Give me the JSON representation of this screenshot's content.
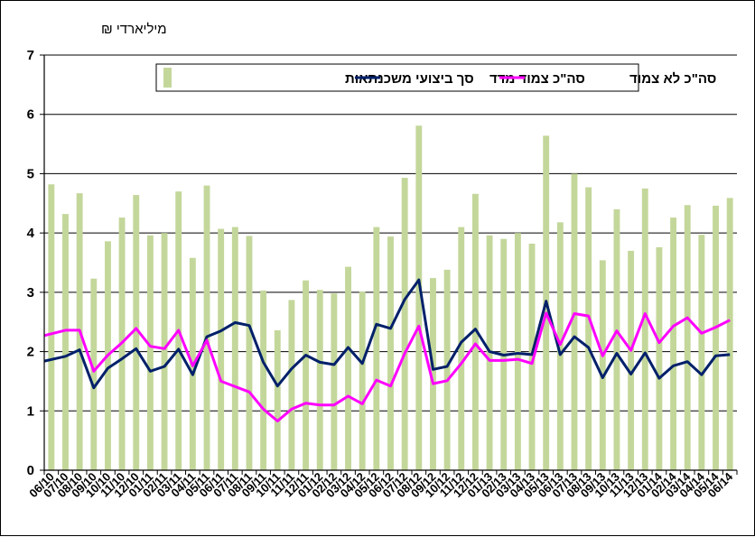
{
  "chart_data": {
    "type": "bar",
    "unit_label": "מיליארדי ₪",
    "ylim": [
      0,
      7
    ],
    "yticks": [
      "0",
      "1",
      "2",
      "3",
      "4",
      "5",
      "6",
      "7"
    ],
    "grid": true,
    "legend_position": "top",
    "categories": [
      "06/10",
      "07/10",
      "08/10",
      "09/10",
      "10/10",
      "11/10",
      "12/10",
      "01/11",
      "02/11",
      "03/11",
      "04/11",
      "05/11",
      "06/11",
      "07/11",
      "08/11",
      "09/11",
      "10/11",
      "11/11",
      "12/11",
      "01/12",
      "02/12",
      "03/12",
      "04/12",
      "05/12",
      "06/12",
      "07/12",
      "08/12",
      "09/12",
      "10/12",
      "11/12",
      "12/12",
      "01/13",
      "02/13",
      "03/13",
      "04/13",
      "05/13",
      "06/13",
      "07/13",
      "08/13",
      "09/13",
      "10/13",
      "11/13",
      "12/13",
      "01/14",
      "02/14",
      "03/14",
      "04/14",
      "05/14",
      "06/14"
    ],
    "x_tick_labels": [
      "06/10",
      "07/10",
      "08/10",
      "09/10",
      "10/10",
      "11/10",
      "12/10",
      "01/11",
      "02/11",
      "03/11",
      "04/11",
      "05/11",
      "06/11",
      "07/11",
      "08/11",
      "09/11",
      "10/11",
      "11/11",
      "12/11",
      "01/12",
      "02/12",
      "03/12",
      "04/12",
      "05/12",
      "06/12",
      "07/12",
      "08/12",
      "09/12",
      "10/12",
      "11/12",
      "12/12",
      "01/13",
      "02/13",
      "03/13",
      "04/13",
      "05/13",
      "06/13",
      "07/13",
      "08/13",
      "09/13",
      "10/13",
      "11/13",
      "12/13",
      "01/14",
      "02/14",
      "03/14",
      "04/14",
      "05/14",
      "06/14"
    ],
    "series": [
      {
        "name": "סך ביצועי משכנתאות",
        "kind": "bar",
        "color": "#c4d79b",
        "values": [
          4.82,
          4.32,
          4.67,
          3.23,
          3.86,
          4.26,
          4.64,
          3.96,
          4.0,
          4.7,
          3.58,
          4.8,
          4.07,
          4.1,
          3.95,
          3.03,
          2.36,
          2.87,
          3.2,
          3.04,
          2.98,
          3.43,
          3.01,
          4.1,
          3.94,
          4.93,
          5.81,
          3.24,
          3.38,
          4.1,
          4.66,
          3.96,
          3.9,
          4.0,
          3.82,
          5.64,
          4.18,
          5.0,
          4.77,
          3.54,
          4.4,
          3.7,
          4.75,
          3.76,
          4.26,
          4.47,
          3.97,
          4.46,
          4.59
        ]
      },
      {
        "name": "סה\"כ צמוד מדד",
        "kind": "line",
        "color": "#00206a",
        "values": [
          1.84,
          1.92,
          2.03,
          1.39,
          1.72,
          1.88,
          2.05,
          1.67,
          1.75,
          2.04,
          1.61,
          2.25,
          2.35,
          2.49,
          2.44,
          1.82,
          1.42,
          1.71,
          1.94,
          1.82,
          1.78,
          2.07,
          1.8,
          2.46,
          2.39,
          2.88,
          3.21,
          1.7,
          1.75,
          2.16,
          2.38,
          2.0,
          1.94,
          1.97,
          1.95,
          2.85,
          1.95,
          2.25,
          2.07,
          1.56,
          1.97,
          1.62,
          1.98,
          1.55,
          1.76,
          1.83,
          1.61,
          1.93,
          1.95
        ]
      },
      {
        "name": "סה\"כ לא צמוד",
        "kind": "line",
        "color": "#ff00ff",
        "values": [
          2.27,
          2.36,
          2.36,
          1.67,
          1.94,
          2.15,
          2.39,
          2.09,
          2.05,
          2.36,
          1.76,
          2.19,
          1.5,
          1.41,
          1.32,
          1.03,
          0.83,
          1.03,
          1.13,
          1.1,
          1.1,
          1.25,
          1.12,
          1.52,
          1.42,
          1.97,
          2.43,
          1.46,
          1.51,
          1.8,
          2.13,
          1.85,
          1.85,
          1.87,
          1.8,
          2.65,
          2.12,
          2.64,
          2.6,
          1.93,
          2.35,
          2.02,
          2.64,
          2.15,
          2.43,
          2.57,
          2.31,
          2.41,
          2.53
        ]
      }
    ]
  }
}
